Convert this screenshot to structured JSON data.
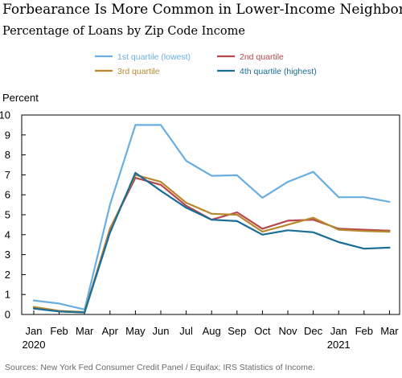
{
  "title": "Forbearance Is More Common in Lower-Income Neighborhoods",
  "subtitle": "Percentage of Loans by Zip Code Income",
  "source": "Sources:  New York Fed Consumer Credit Panel / Equifax; IRS Statistics of Income.",
  "chart_data": {
    "type": "line",
    "ylabel": "Percent",
    "ylim": [
      0,
      10
    ],
    "yticks": [
      0,
      1,
      2,
      3,
      4,
      5,
      6,
      7,
      8,
      9,
      10
    ],
    "categories": [
      "Jan",
      "Feb",
      "Mar",
      "Apr",
      "May",
      "Jun",
      "Jul",
      "Aug",
      "Sep",
      "Oct",
      "Nov",
      "Dec",
      "Jan",
      "Feb",
      "Mar"
    ],
    "year_labels": [
      {
        "index": 0,
        "label": "2020"
      },
      {
        "index": 12,
        "label": "2021"
      }
    ],
    "grid": false,
    "legend": "top",
    "series": [
      {
        "name": "1st quartile (lowest)",
        "color": "#6aaee0",
        "values": [
          0.7,
          0.55,
          0.25,
          5.5,
          9.5,
          9.5,
          7.7,
          6.95,
          6.98,
          5.85,
          6.65,
          7.15,
          5.88,
          5.88,
          5.65
        ]
      },
      {
        "name": "2nd quartile",
        "color": "#b5474d",
        "values": [
          0.35,
          0.15,
          0.1,
          4.3,
          6.85,
          6.5,
          5.45,
          4.75,
          5.12,
          4.3,
          4.7,
          4.75,
          4.3,
          4.25,
          4.2
        ]
      },
      {
        "name": "3rd quartile",
        "color": "#b8882d",
        "values": [
          0.38,
          0.18,
          0.12,
          4.25,
          7.0,
          6.65,
          5.6,
          5.05,
          5.0,
          4.15,
          4.5,
          4.85,
          4.25,
          4.18,
          4.15
        ]
      },
      {
        "name": "4th quartile (highest)",
        "color": "#1a6d96",
        "values": [
          0.3,
          0.15,
          0.1,
          4.1,
          7.1,
          6.2,
          5.35,
          4.75,
          4.68,
          4.0,
          4.22,
          4.12,
          3.63,
          3.3,
          3.35
        ]
      }
    ]
  }
}
